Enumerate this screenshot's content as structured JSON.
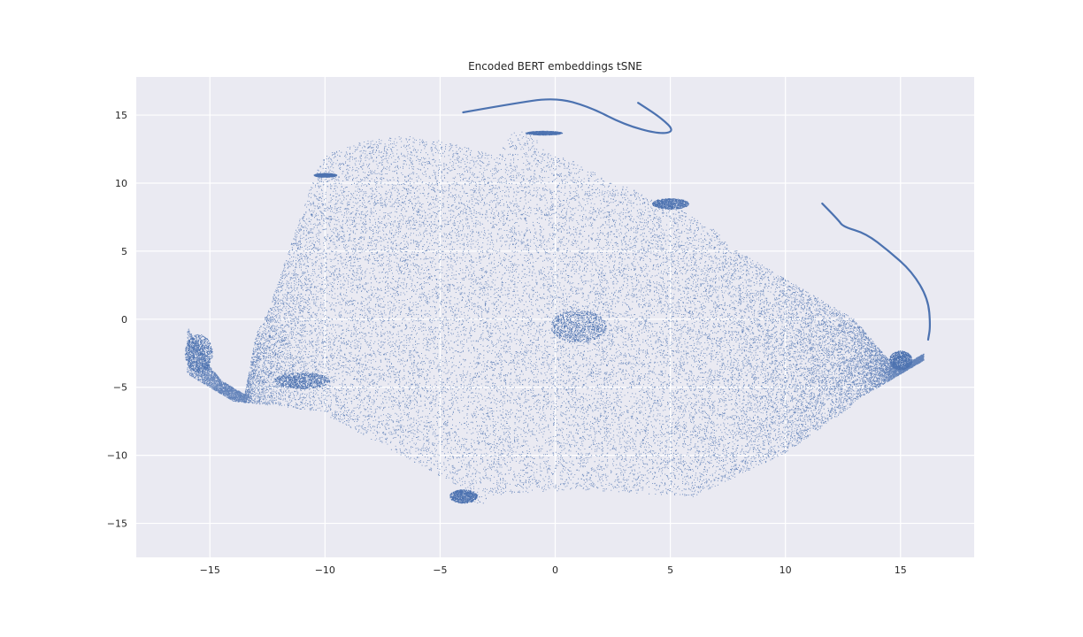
{
  "chart_data": {
    "type": "scatter",
    "title": "Encoded BERT embeddings tSNE",
    "xlabel": "",
    "ylabel": "",
    "xlim": [
      -18.2,
      18.2
    ],
    "ylim": [
      -17.5,
      17.8
    ],
    "xticks": [
      -15,
      -10,
      -5,
      0,
      5,
      10,
      15
    ],
    "yticks": [
      -15,
      -10,
      -5,
      0,
      5,
      10,
      15
    ],
    "xtick_labels": [
      "−15",
      "−10",
      "−5",
      "0",
      "5",
      "10",
      "15"
    ],
    "ytick_labels": [
      "−15",
      "−10",
      "−5",
      "0",
      "5",
      "10",
      "15"
    ],
    "grid": true,
    "background_color": "#EAEAF2",
    "grid_color": "#FFFFFF",
    "point_color": "#4C72B0",
    "legend": "none",
    "series": [
      {
        "values": {
          "x": [
            -16.0,
            -15.5,
            -15.0,
            -14.5,
            -14.0,
            -13.5,
            -13.0,
            -12.5,
            -12.0,
            -11.5,
            -11.0,
            -10.5,
            -10.0,
            -9.5,
            -9.0,
            -8.5,
            -8.0,
            -7.5,
            -7.0,
            -6.5,
            -6.0,
            -5.5,
            -5.0,
            -4.5,
            -4.0,
            -3.5,
            -3.0,
            -2.5,
            -2.0,
            -1.5,
            -1.0,
            -0.5,
            0.0,
            0.5,
            1.0,
            1.5,
            2.0,
            2.5,
            3.0,
            3.5,
            4.0,
            4.5,
            5.0,
            5.5,
            6.0,
            6.5,
            7.0,
            7.5,
            8.0,
            8.5,
            9.0,
            9.5,
            10.0,
            10.5,
            11.0,
            11.5,
            12.0,
            12.5,
            13.0,
            13.5,
            14.0,
            14.5,
            15.0,
            15.5,
            16.0
          ],
          "y": [
            -0.5,
            -2.0,
            -3.5,
            -4.5,
            -5.0,
            -5.5,
            -1.0,
            0.5,
            3.0,
            5.5,
            8.0,
            10.5,
            12.0,
            12.5,
            12.8,
            13.0,
            13.2,
            13.3,
            13.4,
            13.5,
            13.4,
            13.0,
            13.2,
            13.0,
            12.8,
            12.5,
            12.2,
            12.0,
            13.7,
            13.8,
            13.7,
            12.5,
            12.0,
            11.8,
            11.5,
            11.0,
            10.5,
            10.0,
            9.8,
            9.5,
            9.0,
            8.8,
            8.5,
            8.0,
            7.5,
            7.0,
            6.5,
            5.5,
            5.0,
            4.5,
            4.0,
            3.5,
            3.0,
            2.5,
            2.0,
            1.5,
            1.0,
            0.5,
            0.0,
            -1.0,
            -2.0,
            -3.0,
            -3.5,
            -3.0,
            -2.5
          ]
        }
      }
    ],
    "annotations": [
      {
        "shape": "curve",
        "points": [
          [
            -4.0,
            15.2
          ],
          [
            -2.0,
            15.8
          ],
          [
            0.0,
            16.3
          ],
          [
            1.5,
            15.6
          ],
          [
            3.0,
            14.3
          ],
          [
            4.5,
            13.6
          ],
          [
            5.2,
            13.8
          ],
          [
            4.6,
            14.8
          ],
          [
            3.6,
            15.9
          ]
        ]
      },
      {
        "shape": "curve",
        "points": [
          [
            11.6,
            8.5
          ],
          [
            12.3,
            7.3
          ],
          [
            12.5,
            6.8
          ],
          [
            13.5,
            6.3
          ],
          [
            14.5,
            5.0
          ],
          [
            15.5,
            3.5
          ],
          [
            16.2,
            1.5
          ],
          [
            16.3,
            -0.5
          ],
          [
            16.2,
            -1.5
          ]
        ]
      }
    ]
  }
}
